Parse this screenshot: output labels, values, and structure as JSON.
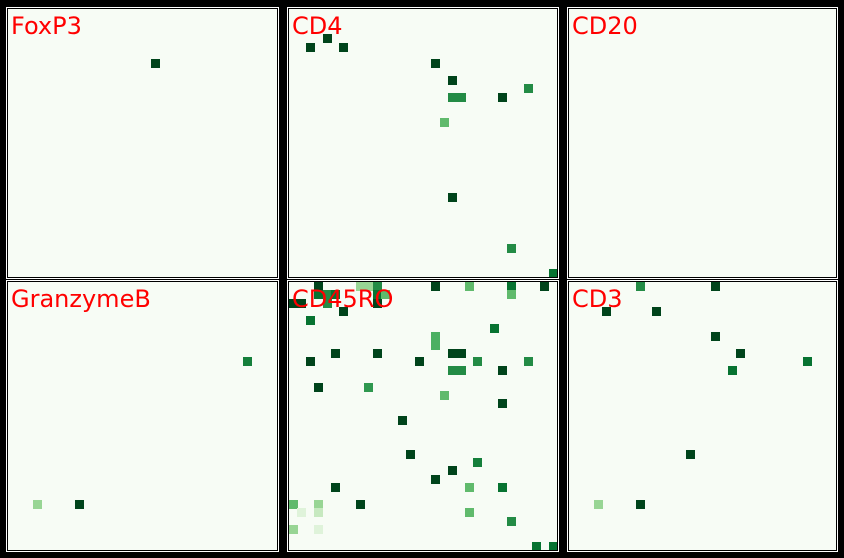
{
  "figure": {
    "background_color": "#000000",
    "panel_background_color": "#f7fcf5",
    "title_color": "#ff0000",
    "colormap": "Greens",
    "grid_size": [
      32,
      32
    ],
    "layout": {
      "rows": 2,
      "cols": 3
    }
  },
  "panels": [
    {
      "title": "FoxP3",
      "pixels": [
        [
          17,
          6,
          1.0
        ]
      ]
    },
    {
      "title": "CD4",
      "pixels": [
        [
          2,
          4,
          1.0
        ],
        [
          4,
          3,
          1.0
        ],
        [
          6,
          4,
          1.0
        ],
        [
          17,
          6,
          1.0
        ],
        [
          19,
          8,
          1.0
        ],
        [
          28,
          9,
          0.75
        ],
        [
          19,
          10,
          0.75
        ],
        [
          20,
          10,
          0.75
        ],
        [
          25,
          10,
          1.0
        ],
        [
          18,
          13,
          0.55
        ],
        [
          19,
          22,
          1.0
        ],
        [
          26,
          28,
          0.75
        ],
        [
          31,
          31,
          0.85
        ]
      ]
    },
    {
      "title": "CD20",
      "pixels": []
    },
    {
      "title": "GranzymeB",
      "pixels": [
        [
          28,
          9,
          0.8
        ],
        [
          3,
          26,
          0.4
        ],
        [
          8,
          26,
          1.0
        ]
      ]
    },
    {
      "title": "CD45RO",
      "pixels": [
        [
          3,
          0,
          1.0
        ],
        [
          8,
          0,
          0.4
        ],
        [
          9,
          0,
          0.4
        ],
        [
          10,
          0,
          0.75
        ],
        [
          17,
          0,
          1.0
        ],
        [
          21,
          0,
          0.55
        ],
        [
          26,
          0,
          0.85
        ],
        [
          30,
          0,
          1.0
        ],
        [
          3,
          1,
          0.85
        ],
        [
          4,
          1,
          0.75
        ],
        [
          5,
          1,
          0.85
        ],
        [
          10,
          1,
          0.85
        ],
        [
          11,
          1,
          0.55
        ],
        [
          26,
          1,
          0.55
        ],
        [
          0,
          2,
          1.0
        ],
        [
          1,
          2,
          1.0
        ],
        [
          4,
          2,
          0.75
        ],
        [
          10,
          2,
          1.0
        ],
        [
          6,
          3,
          1.0
        ],
        [
          2,
          4,
          0.85
        ],
        [
          24,
          5,
          0.85
        ],
        [
          17,
          6,
          0.6
        ],
        [
          17,
          7,
          0.6
        ],
        [
          5,
          8,
          1.0
        ],
        [
          10,
          8,
          1.0
        ],
        [
          19,
          8,
          1.0
        ],
        [
          20,
          8,
          1.0
        ],
        [
          2,
          9,
          1.0
        ],
        [
          15,
          9,
          1.0
        ],
        [
          22,
          9,
          0.75
        ],
        [
          28,
          9,
          0.75
        ],
        [
          19,
          10,
          0.75
        ],
        [
          20,
          10,
          0.75
        ],
        [
          25,
          10,
          1.0
        ],
        [
          3,
          12,
          1.0
        ],
        [
          9,
          12,
          0.7
        ],
        [
          18,
          13,
          0.55
        ],
        [
          25,
          14,
          1.0
        ],
        [
          13,
          16,
          1.0
        ],
        [
          14,
          20,
          1.0
        ],
        [
          22,
          21,
          0.8
        ],
        [
          19,
          22,
          1.0
        ],
        [
          17,
          23,
          1.0
        ],
        [
          5,
          24,
          1.0
        ],
        [
          21,
          24,
          0.55
        ],
        [
          25,
          24,
          0.85
        ],
        [
          0,
          26,
          0.55
        ],
        [
          3,
          26,
          0.4
        ],
        [
          8,
          26,
          1.0
        ],
        [
          1,
          27,
          0.15
        ],
        [
          3,
          27,
          0.25
        ],
        [
          21,
          27,
          0.55
        ],
        [
          26,
          28,
          0.75
        ],
        [
          0,
          29,
          0.4
        ],
        [
          3,
          29,
          0.15
        ],
        [
          29,
          31,
          0.85
        ],
        [
          31,
          31,
          0.85
        ]
      ]
    },
    {
      "title": "CD3",
      "pixels": [
        [
          8,
          0,
          0.75
        ],
        [
          17,
          0,
          1.0
        ],
        [
          4,
          3,
          1.0
        ],
        [
          10,
          3,
          1.0
        ],
        [
          17,
          6,
          1.0
        ],
        [
          20,
          8,
          1.0
        ],
        [
          28,
          9,
          0.85
        ],
        [
          19,
          10,
          0.85
        ],
        [
          14,
          20,
          1.0
        ],
        [
          3,
          26,
          0.4
        ],
        [
          8,
          26,
          1.0
        ]
      ]
    }
  ]
}
